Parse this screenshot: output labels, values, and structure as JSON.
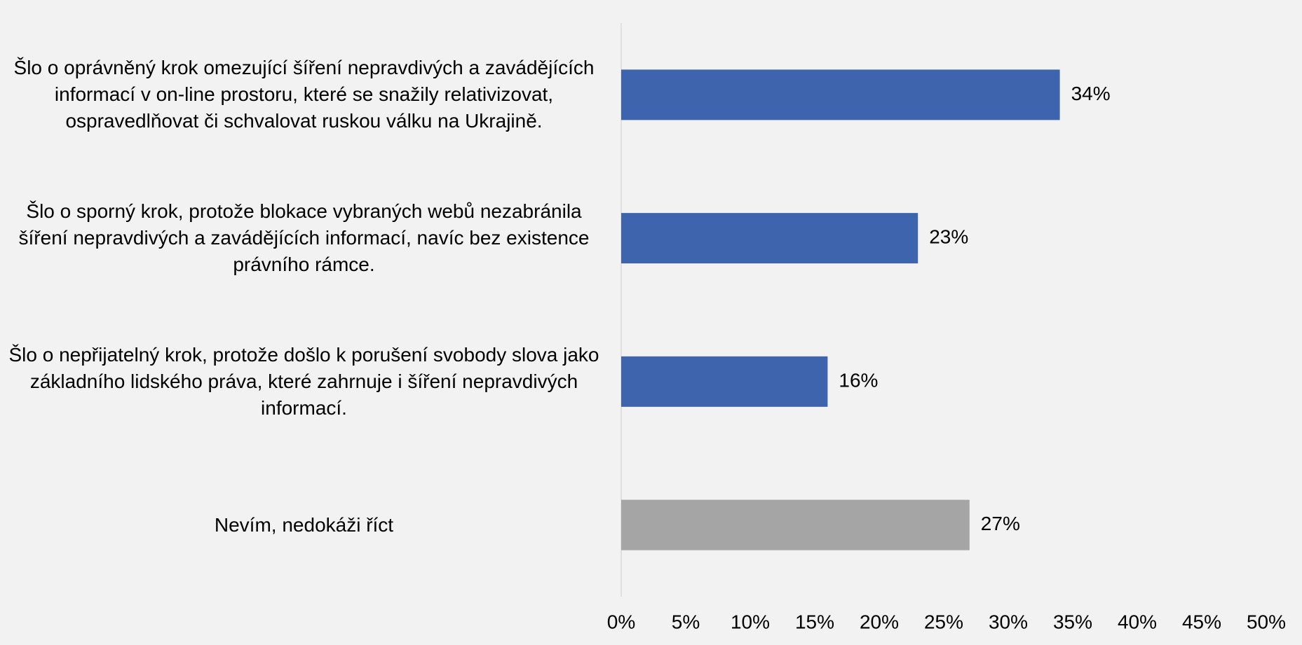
{
  "chart_data": {
    "type": "barh",
    "categories": [
      "Šlo o oprávněný krok omezující šíření nepravdivých a zavádějících informací v on-line prostoru, které se snažily relativizovat, ospravedlňovat či schvalovat ruskou válku na Ukrajině.",
      "Šlo o sporný krok, protože blokace vybraných webů nezabránila šíření nepravdivých a zavádějících informací, navíc bez existence právního rámce.",
      "Šlo o nepřijatelný krok, protože došlo k porušení svobody slova jako základního lidského práva, které zahrnuje i šíření nepravdivých informací.",
      "Nevím, nedokáži říct"
    ],
    "values": [
      34,
      23,
      16,
      27
    ],
    "value_labels": [
      "34%",
      "23%",
      "16%",
      "27%"
    ],
    "colors": [
      "#3e64ad",
      "#3e64ad",
      "#3e64ad",
      "#a5a5a5"
    ],
    "xlim": [
      0,
      50
    ],
    "xticks": [
      {
        "value": 0,
        "label": "0%"
      },
      {
        "value": 5,
        "label": "5%"
      },
      {
        "value": 10,
        "label": "10%"
      },
      {
        "value": 15,
        "label": "15%"
      },
      {
        "value": 20,
        "label": "20%"
      },
      {
        "value": 25,
        "label": "25%"
      },
      {
        "value": 30,
        "label": "30%"
      },
      {
        "value": 35,
        "label": "35%"
      },
      {
        "value": 40,
        "label": "40%"
      },
      {
        "value": 45,
        "label": "45%"
      },
      {
        "value": 50,
        "label": "50%"
      }
    ],
    "grid": false
  }
}
